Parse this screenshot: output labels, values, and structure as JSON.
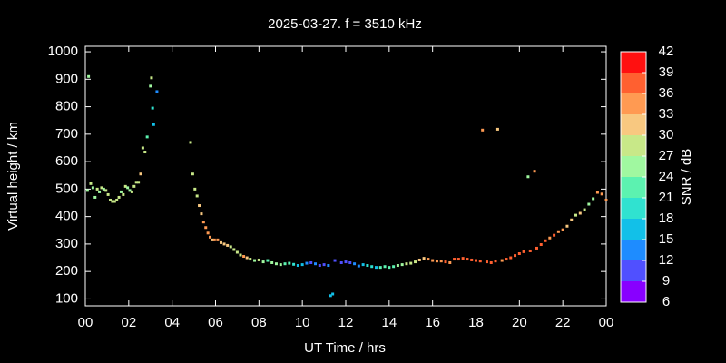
{
  "chart_data": {
    "type": "scatter",
    "title": "2025-03-27. f = 3510 kHz",
    "x_label": "UT Time / hrs",
    "y_label": "Virtual height / km",
    "xlim": [
      0,
      24
    ],
    "ylim": [
      75,
      1020
    ],
    "xticks": [
      {
        "value": 0,
        "label": "00"
      },
      {
        "value": 2,
        "label": "02"
      },
      {
        "value": 4,
        "label": "04"
      },
      {
        "value": 6,
        "label": "06"
      },
      {
        "value": 8,
        "label": "08"
      },
      10,
      12,
      14,
      16,
      18,
      20,
      22,
      {
        "value": 24,
        "label": "00"
      }
    ],
    "yticks": [
      100,
      200,
      300,
      400,
      500,
      600,
      700,
      800,
      900,
      1000
    ],
    "colorbar": {
      "label": "SNR / dB",
      "lim": [
        6,
        42
      ],
      "ticks": [
        6,
        9,
        12,
        15,
        18,
        21,
        24,
        27,
        30,
        33,
        36,
        39,
        42
      ],
      "colors": [
        "#8800ff",
        "#5050ff",
        "#1e8cff",
        "#12c0e8",
        "#30e2d0",
        "#5cf2b0",
        "#a0f8a0",
        "#c8e888",
        "#f8c880",
        "#ff9a52",
        "#ff6030",
        "#ff1010"
      ]
    },
    "series": [
      {
        "name": "SNR",
        "x": [
          0.1,
          0.15,
          0.25,
          0.35,
          0.45,
          0.55,
          0.65,
          0.75,
          0.85,
          0.95,
          1.05,
          1.15,
          1.25,
          1.35,
          1.45,
          1.55,
          1.65,
          1.75,
          1.85,
          1.95,
          2.05,
          2.15,
          2.25,
          2.35,
          2.45,
          2.55,
          2.65,
          2.75,
          2.85,
          3,
          3.05,
          3.1,
          3.15,
          3.3,
          4.85,
          4.95,
          5.05,
          5.15,
          5.25,
          5.35,
          5.45,
          5.55,
          5.65,
          5.75,
          5.85,
          5.95,
          6.1,
          6.25,
          6.4,
          6.55,
          6.7,
          6.85,
          7,
          7.15,
          7.3,
          7.45,
          7.6,
          7.8,
          8,
          8.2,
          8.4,
          8.6,
          8.8,
          9,
          9.2,
          9.4,
          9.6,
          9.8,
          10,
          10.2,
          10.4,
          10.6,
          10.8,
          11,
          11.2,
          11.3,
          11.4,
          11.5,
          11.8,
          12,
          12.2,
          12.4,
          12.6,
          12.8,
          13,
          13.2,
          13.4,
          13.6,
          13.8,
          14,
          14.2,
          14.4,
          14.6,
          14.8,
          15,
          15.2,
          15.4,
          15.6,
          15.8,
          16,
          16.2,
          16.4,
          16.6,
          16.8,
          17,
          17.2,
          17.4,
          17.6,
          17.8,
          18,
          18.2,
          18.3,
          18.5,
          18.7,
          18.9,
          19,
          19.2,
          19.4,
          19.6,
          19.8,
          20,
          20.2,
          20.4,
          20.5,
          20.7,
          20.8,
          21,
          21.2,
          21.4,
          21.6,
          21.8,
          22,
          22.2,
          22.4,
          22.6,
          22.8,
          23,
          23.2,
          23.4,
          23.6,
          23.8,
          24
        ],
        "values": [
          495,
          910,
          520,
          505,
          470,
          500,
          490,
          505,
          500,
          495,
          480,
          460,
          455,
          455,
          460,
          470,
          490,
          480,
          510,
          505,
          495,
          490,
          510,
          525,
          525,
          555,
          650,
          635,
          690,
          875,
          905,
          795,
          735,
          855,
          670,
          555,
          500,
          475,
          440,
          410,
          380,
          360,
          340,
          325,
          315,
          315,
          315,
          305,
          300,
          295,
          290,
          280,
          270,
          260,
          255,
          250,
          245,
          240,
          242,
          235,
          240,
          232,
          228,
          225,
          228,
          230,
          226,
          222,
          225,
          230,
          232,
          228,
          222,
          225,
          222,
          112,
          118,
          240,
          232,
          235,
          232,
          228,
          220,
          225,
          222,
          218,
          215,
          215,
          218,
          215,
          218,
          222,
          225,
          228,
          230,
          235,
          242,
          248,
          245,
          240,
          238,
          238,
          235,
          232,
          245,
          245,
          248,
          245,
          242,
          240,
          238,
          715,
          235,
          232,
          238,
          718,
          240,
          245,
          250,
          258,
          265,
          272,
          545,
          275,
          565,
          285,
          298,
          312,
          322,
          332,
          345,
          352,
          365,
          388,
          405,
          412,
          425,
          445,
          465,
          488,
          482,
          460
        ],
        "snr": [
          26,
          24,
          27,
          26,
          25,
          27,
          26,
          27,
          26,
          27,
          27,
          27,
          28,
          27,
          28,
          27,
          26,
          27,
          27,
          25,
          26,
          27,
          27,
          28,
          28,
          31,
          28,
          29,
          23,
          25,
          28,
          19,
          16,
          13,
          28,
          29,
          28,
          29,
          32,
          31,
          33,
          34,
          33,
          35,
          32,
          34,
          33,
          31,
          31,
          30,
          28,
          28,
          27,
          29,
          33,
          30,
          27,
          26,
          28,
          25,
          23,
          26,
          24,
          25,
          23,
          22,
          20,
          17,
          15,
          13,
          11,
          14,
          10,
          11,
          12,
          15,
          16,
          10,
          11,
          10,
          11,
          14,
          12,
          16,
          18,
          20,
          17,
          21,
          22,
          23,
          22,
          25,
          26,
          27,
          27,
          29,
          31,
          31,
          33,
          34,
          35,
          35,
          36,
          33,
          37,
          36,
          37,
          37,
          36,
          38,
          37,
          35,
          38,
          37,
          36,
          31,
          35,
          36,
          37,
          38,
          37,
          36,
          25,
          37,
          34,
          38,
          37,
          38,
          35,
          37,
          33,
          35,
          32,
          31,
          29,
          31,
          27,
          24,
          25,
          33,
          35,
          33
        ]
      }
    ]
  }
}
